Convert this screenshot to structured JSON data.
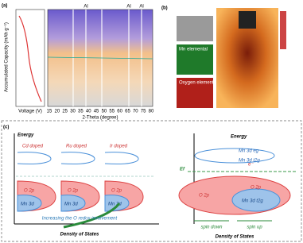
{
  "panel_a": {
    "label": "(a)",
    "y_label": "Accumulated Capacity (mAh g⁻¹)",
    "voltage_label": "Voltage (V)",
    "x_label": "2-Theta (degree)",
    "x_ticks": [
      "15",
      "20",
      "25",
      "30",
      "35",
      "40",
      "45",
      "50",
      "55",
      "60",
      "65",
      "70",
      "75",
      "80"
    ],
    "peak_labels": [
      "Al",
      "Al",
      "Al"
    ]
  },
  "panel_b": {
    "label": "(b)",
    "mn_map": "Mn elemental",
    "o_map": "Oxygen elemental"
  },
  "panel_c": {
    "label": "(c)",
    "left": {
      "energy": "Energy",
      "dopants": [
        "Cd doped",
        "Ru doped",
        "Ir doped"
      ],
      "o_band": "O 2p",
      "mn_band": "Mn 3d",
      "arrow_text": "Increasing the O redox involvement",
      "x_label": "Density of States"
    },
    "right": {
      "energy": "Energy",
      "eg": "Mn 3d eg",
      "t2g_up": "Mn 3d t2g",
      "fermi": "Ef",
      "electron": "e⁻",
      "o_left": "O 2p",
      "o_right": "O 2p",
      "t2g_low": "Mn 3d t2g",
      "spin_down": "spin down",
      "spin_up": "spin up",
      "x_label": "Density of States"
    }
  }
}
